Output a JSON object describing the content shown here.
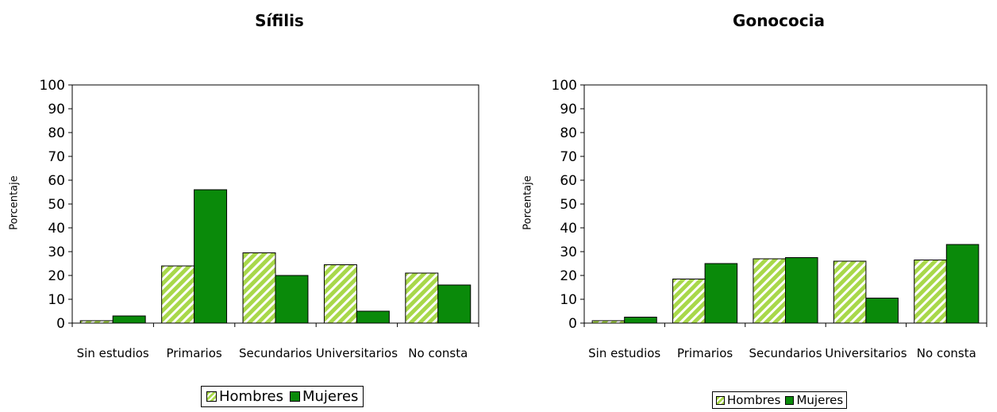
{
  "colors": {
    "hombres": "#a8d84a",
    "hombres_stripe": "#ffffff",
    "mujeres": "#0a8a0a",
    "axis": "#000000"
  },
  "chart_data": [
    {
      "type": "bar",
      "title": "Sífilis",
      "ylabel": "Porcentaje",
      "xlabel": "",
      "ylim": [
        0,
        100
      ],
      "yticks": [
        "0",
        "10",
        "20",
        "30",
        "40",
        "50",
        "60",
        "70",
        "80",
        "90",
        "100"
      ],
      "categories": [
        "Sin estudios",
        "Primarios",
        "Secundarios",
        "Universitarios",
        "No consta"
      ],
      "series": [
        {
          "name": "Hombres",
          "values": [
            1,
            24,
            29.5,
            24.5,
            21
          ]
        },
        {
          "name": "Mujeres",
          "values": [
            3,
            56,
            20,
            5,
            16
          ]
        }
      ],
      "legend": {
        "position": "bottom",
        "items": [
          "Hombres",
          "Mujeres"
        ]
      },
      "grid": false
    },
    {
      "type": "bar",
      "title": "Gonococia",
      "ylabel": "Porcentaje",
      "xlabel": "",
      "ylim": [
        0,
        100
      ],
      "yticks": [
        "0",
        "10",
        "20",
        "30",
        "40",
        "50",
        "60",
        "70",
        "80",
        "90",
        "100"
      ],
      "categories": [
        "Sin estudios",
        "Primarios",
        "Secundarios",
        "Universitarios",
        "No consta"
      ],
      "series": [
        {
          "name": "Hombres",
          "values": [
            1,
            18.5,
            27,
            26,
            26.5
          ]
        },
        {
          "name": "Mujeres",
          "values": [
            2.5,
            25,
            27.5,
            10.5,
            33
          ]
        }
      ],
      "legend": {
        "position": "bottom",
        "items": [
          "Hombres",
          "Mujeres"
        ]
      },
      "grid": false
    }
  ]
}
